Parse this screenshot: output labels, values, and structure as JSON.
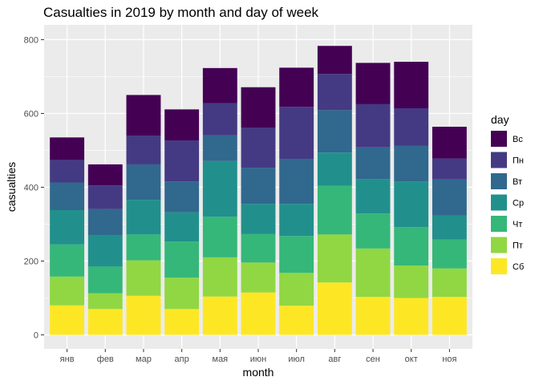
{
  "chart_data": {
    "type": "bar",
    "stacked": true,
    "title": "Casualties in 2019 by month and day of week",
    "xlabel": "month",
    "ylabel": "casualties",
    "ylim": [
      0,
      840
    ],
    "yticks": [
      0,
      200,
      400,
      600,
      800
    ],
    "grid": true,
    "legend_position": "right",
    "legend_title": "day",
    "categories": [
      "янв",
      "фев",
      "мар",
      "апр",
      "мая",
      "июн",
      "июл",
      "авг",
      "сен",
      "окт",
      "ноя"
    ],
    "series": [
      {
        "name": "Сб",
        "color": "#FDE725",
        "values": [
          80,
          70,
          106,
          70,
          104,
          115,
          79,
          142,
          103,
          100,
          103
        ]
      },
      {
        "name": "Пт",
        "color": "#90D743",
        "values": [
          78,
          43,
          96,
          85,
          106,
          81,
          89,
          130,
          131,
          88,
          77
        ]
      },
      {
        "name": "Чт",
        "color": "#35B779",
        "values": [
          87,
          72,
          70,
          98,
          110,
          77,
          100,
          132,
          95,
          104,
          78
        ]
      },
      {
        "name": "Ср",
        "color": "#21908C",
        "values": [
          93,
          84,
          94,
          79,
          151,
          82,
          87,
          90,
          93,
          124,
          65
        ]
      },
      {
        "name": "Вт",
        "color": "#31688E",
        "values": [
          75,
          72,
          96,
          84,
          70,
          98,
          122,
          115,
          86,
          96,
          98
        ]
      },
      {
        "name": "Пн",
        "color": "#443A83",
        "values": [
          61,
          64,
          78,
          111,
          87,
          108,
          141,
          98,
          117,
          102,
          57
        ]
      },
      {
        "name": "Вс",
        "color": "#440154",
        "values": [
          61,
          57,
          110,
          84,
          95,
          110,
          106,
          76,
          112,
          126,
          86
        ]
      }
    ],
    "legend_order": [
      "Вс",
      "Пн",
      "Вт",
      "Ср",
      "Чт",
      "Пт",
      "Сб"
    ]
  }
}
